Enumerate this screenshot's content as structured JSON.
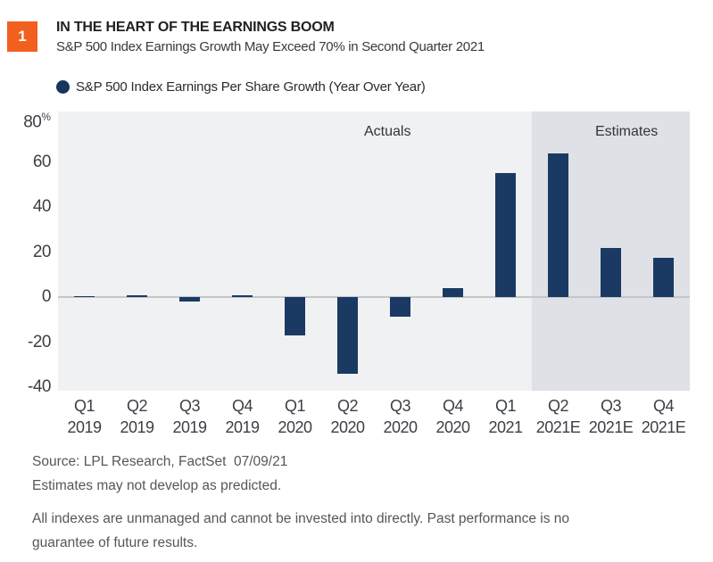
{
  "header": {
    "figure_number": "1",
    "title": "IN THE HEART OF THE EARNINGS BOOM",
    "subtitle": "S&P 500 Index Earnings Growth May Exceed 70% in Second Quarter 2021",
    "badge_color": "#F2601F"
  },
  "legend": {
    "label": "S&P 500 Index Earnings Per Share Growth (Year Over Year)",
    "marker_color": "#17365D"
  },
  "chart_data": {
    "type": "bar",
    "title": "IN THE HEART OF THE EARNINGS BOOM",
    "subtitle": "S&P 500 Index Earnings Growth May Exceed 70% in Second Quarter 2021",
    "series_name": "S&P 500 Index Earnings Per Share Growth (Year Over Year)",
    "categories": [
      {
        "quarter": "Q1",
        "year": "2019"
      },
      {
        "quarter": "Q2",
        "year": "2019"
      },
      {
        "quarter": "Q3",
        "year": "2019"
      },
      {
        "quarter": "Q4",
        "year": "2019"
      },
      {
        "quarter": "Q1",
        "year": "2020"
      },
      {
        "quarter": "Q2",
        "year": "2020"
      },
      {
        "quarter": "Q3",
        "year": "2020"
      },
      {
        "quarter": "Q4",
        "year": "2020"
      },
      {
        "quarter": "Q1",
        "year": "2021"
      },
      {
        "quarter": "Q2",
        "year": "2021E"
      },
      {
        "quarter": "Q3",
        "year": "2021E"
      },
      {
        "quarter": "Q4",
        "year": "2021E"
      }
    ],
    "values": [
      0.5,
      1,
      -2,
      1,
      -17,
      -34,
      -8.5,
      4,
      55,
      64,
      22,
      17.5
    ],
    "unit": "%",
    "y_ticks": [
      80,
      60,
      40,
      20,
      0,
      -20,
      -40
    ],
    "y_axis_suffix": "%",
    "ylim": [
      -41.5,
      82.5
    ],
    "grid": "none",
    "legend_position": "top-left",
    "actuals_label": "Actuals",
    "estimates_label": "Estimates",
    "estimates_start_index": 9,
    "bar_color": "#1A3A63",
    "actuals_bg": "#F0F1F3",
    "estimates_bg": "#E0E1E6",
    "zero_line_color": "#C4C6CA"
  },
  "footer": {
    "source_line": "Source: LPL Research, FactSet  07/09/21",
    "estimates_note": "Estimates may not develop as predicted.",
    "disclaimer": "All indexes are unmanaged and cannot be invested into directly. Past performance is no guarantee of future results."
  }
}
